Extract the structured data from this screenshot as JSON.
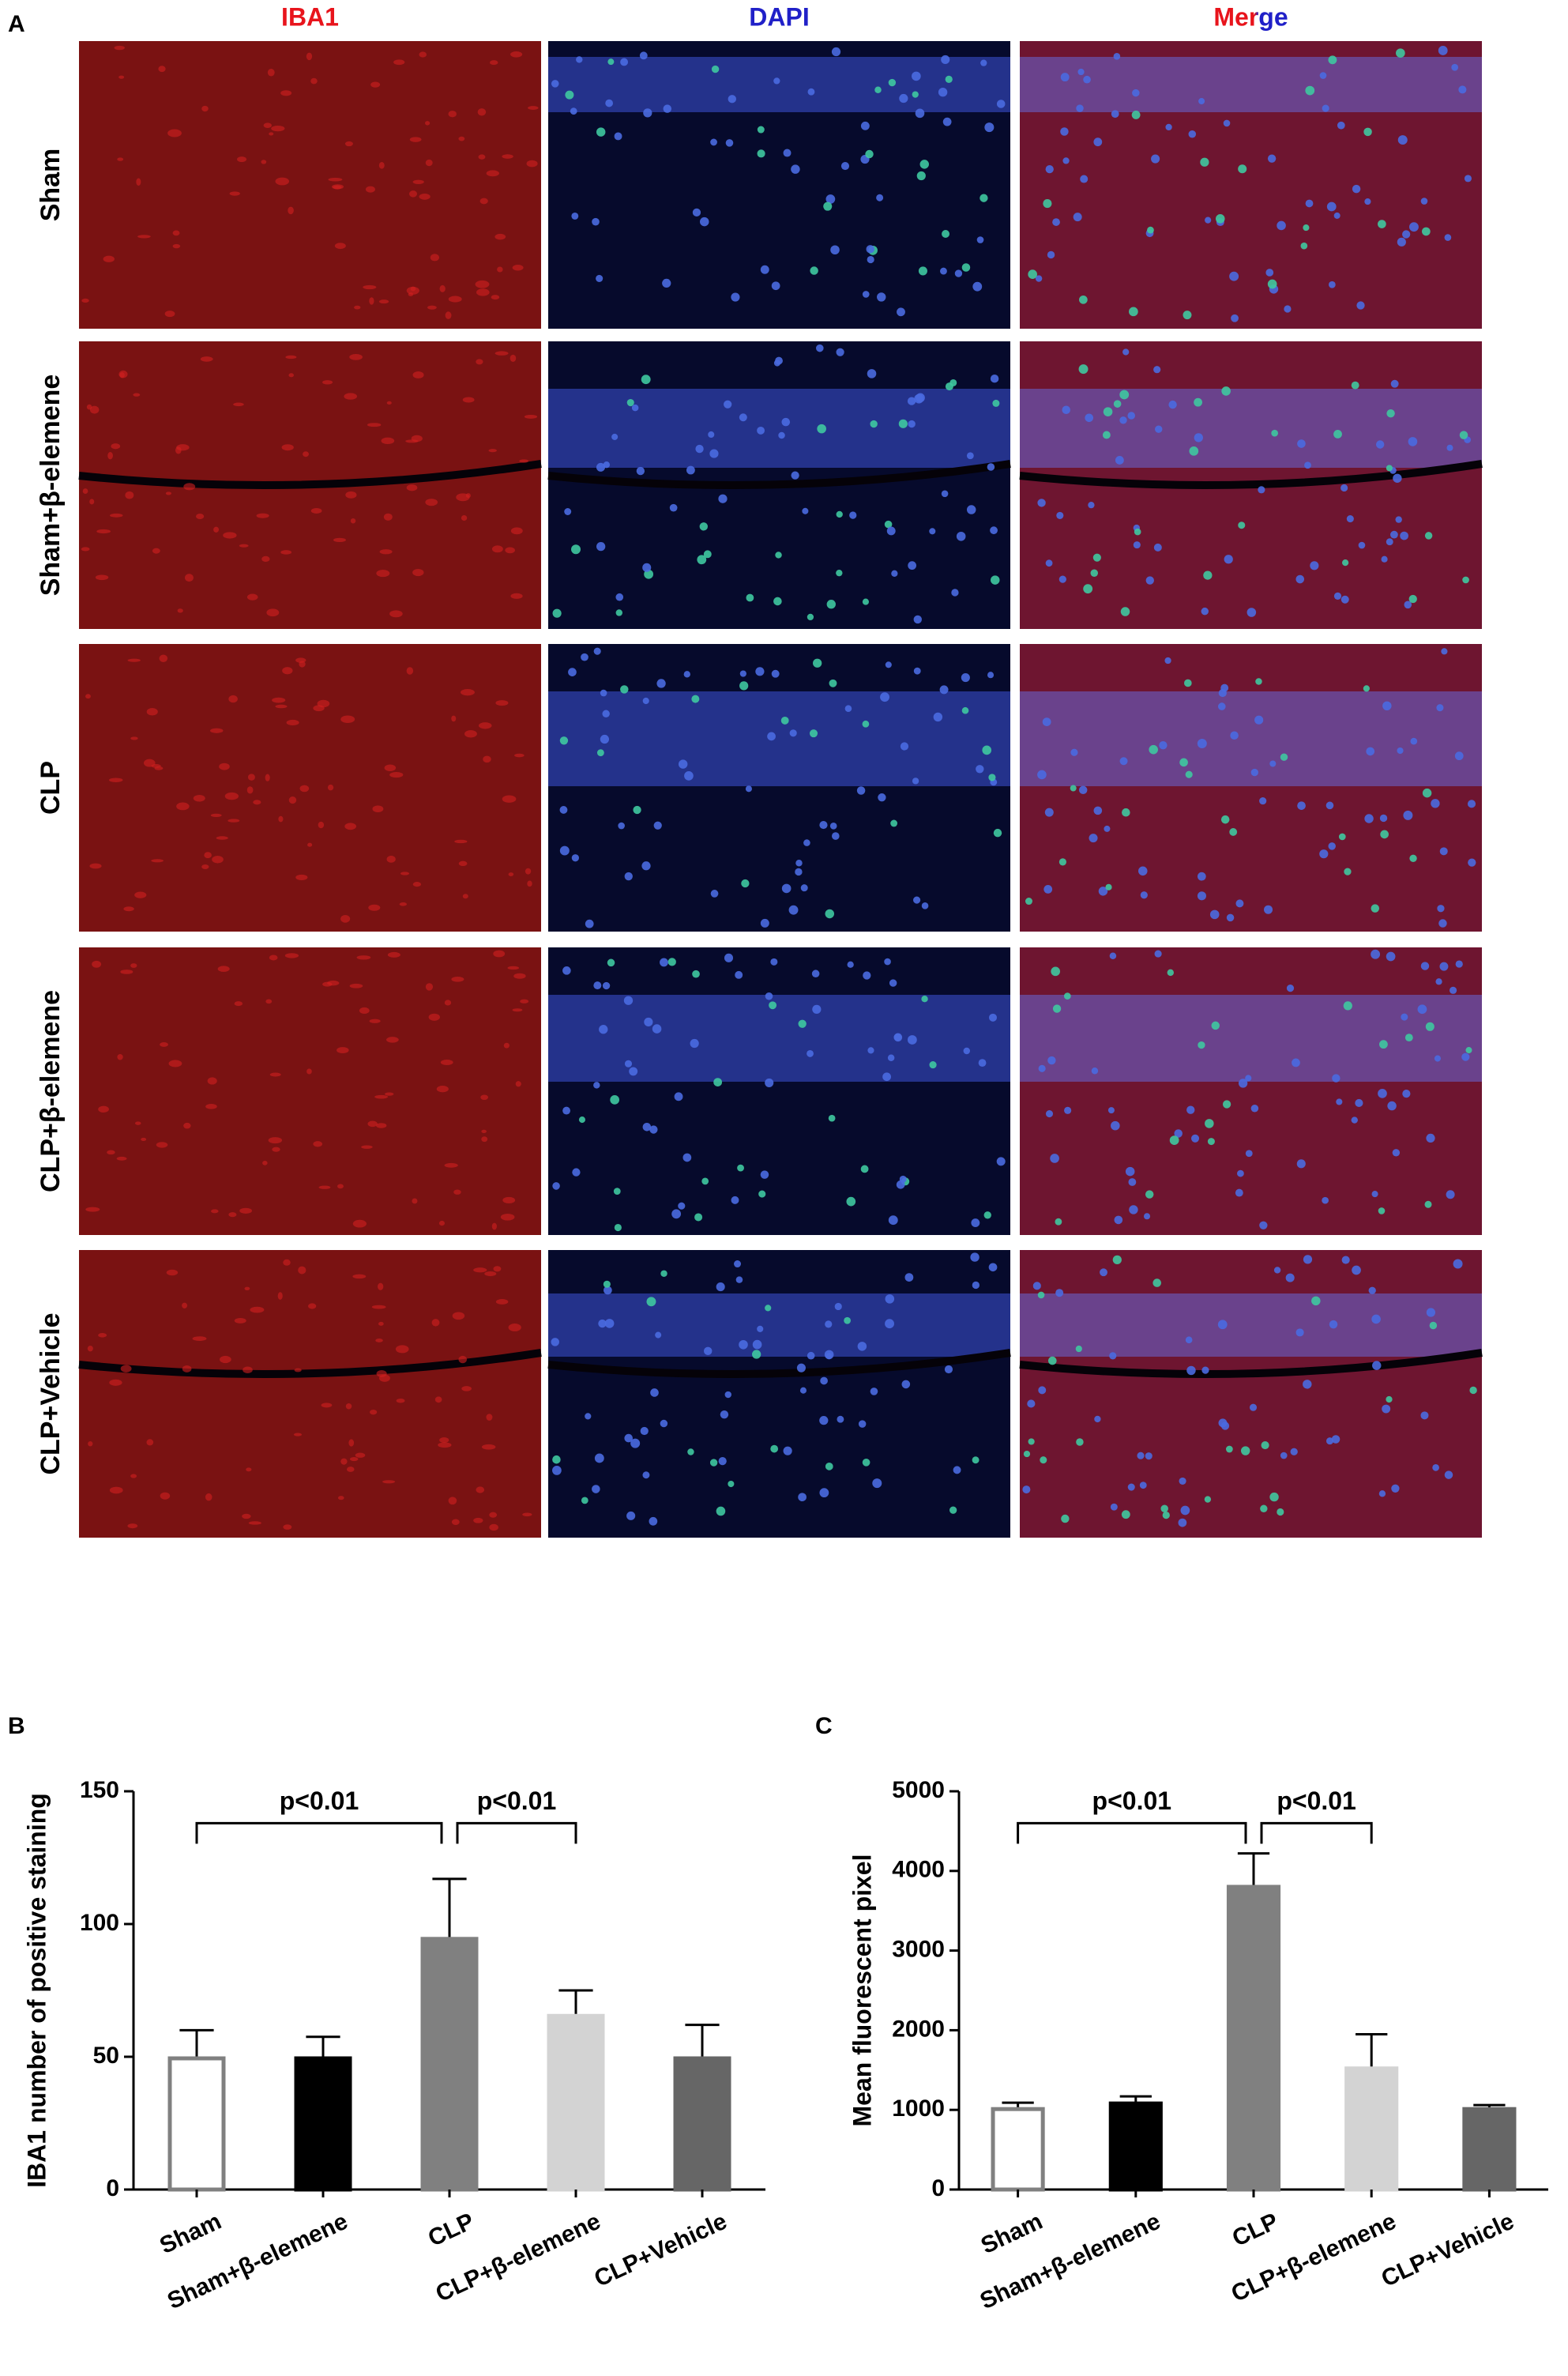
{
  "panel_labels": [
    "A",
    "B",
    "C"
  ],
  "micrographs": {
    "columns": [
      "IBA1",
      "DAPI",
      "Merge"
    ],
    "rows": [
      "Sham",
      "Sham+β-elemene",
      "CLP",
      "CLP+β-elemene",
      "CLP+Vehicle"
    ]
  },
  "chart_data": [
    {
      "type": "bar",
      "ylabel": "IBA1 number of positive staining",
      "categories": [
        "Sham",
        "Sham+β-elemene",
        "CLP",
        "CLP+β-elemene",
        "CLP+Vehicle"
      ],
      "values": [
        50,
        50,
        95,
        66,
        50
      ],
      "errors": [
        10,
        7.5,
        22,
        9,
        12
      ],
      "colors": [
        "#ffffff",
        "#000000",
        "#808080",
        "#d3d3d3",
        "#666666"
      ],
      "edge_colors": [
        "#808080",
        "#000000",
        "#808080",
        "#d3d3d3",
        "#666666"
      ],
      "ylim": [
        0,
        150
      ],
      "yticks": [
        0,
        50,
        100,
        150
      ],
      "annotations": [
        {
          "text": "p<0.01",
          "from": "Sham",
          "to": "CLP"
        },
        {
          "text": "p<0.01",
          "from": "CLP",
          "to": "CLP+β-elemene"
        }
      ]
    },
    {
      "type": "bar",
      "ylabel": "Mean fluorescent pixel",
      "categories": [
        "Sham",
        "Sham+β-elemene",
        "CLP",
        "CLP+β-elemene",
        "CLP+Vehicle"
      ],
      "values": [
        1030,
        1100,
        3820,
        1540,
        1030
      ],
      "errors": [
        60,
        70,
        400,
        410,
        30
      ],
      "colors": [
        "#ffffff",
        "#000000",
        "#808080",
        "#d3d3d3",
        "#666666"
      ],
      "edge_colors": [
        "#808080",
        "#000000",
        "#808080",
        "#d3d3d3",
        "#666666"
      ],
      "ylim": [
        0,
        5000
      ],
      "yticks": [
        0,
        1000,
        2000,
        3000,
        4000,
        5000
      ],
      "annotations": [
        {
          "text": "p<0.01",
          "from": "Sham",
          "to": "CLP"
        },
        {
          "text": "p<0.01",
          "from": "CLP",
          "to": "CLP+β-elemene"
        }
      ]
    }
  ]
}
